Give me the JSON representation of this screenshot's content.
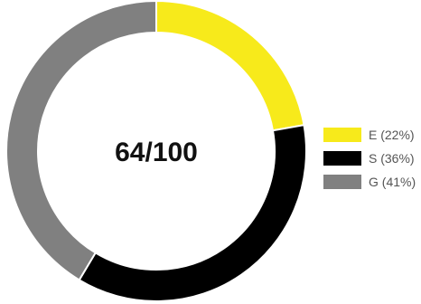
{
  "chart_data": {
    "type": "pie",
    "center_label": "64/100",
    "legend_position": "right",
    "slices": [
      {
        "name": "E",
        "label": "E (22%)",
        "value": 22,
        "color": "#f7ea1b"
      },
      {
        "name": "S",
        "label": "S (36%)",
        "value": 36,
        "color": "#000000"
      },
      {
        "name": "G",
        "label": "G (41%)",
        "value": 41,
        "color": "#808080"
      }
    ]
  }
}
